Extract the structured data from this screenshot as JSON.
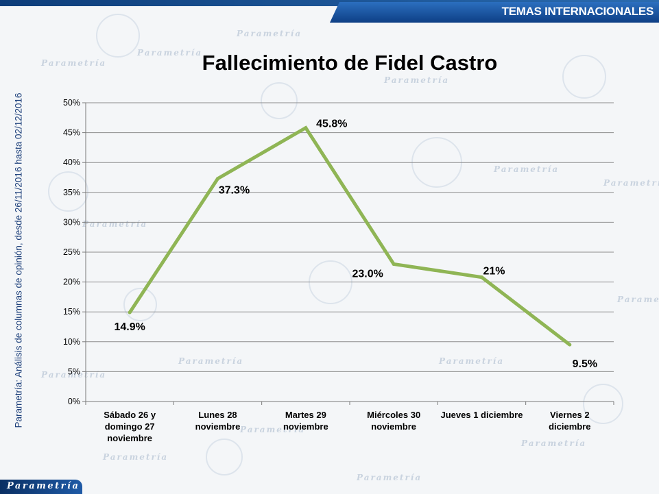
{
  "header": {
    "section": "TEMAS INTERNACIONALES"
  },
  "side_note": "Parametría: Análisis de columnas de opinión, desde 26/11/2016 hasta  02/12/2016",
  "logo": {
    "text": "Parametría"
  },
  "colors": {
    "line": "#8fb555",
    "grid": "#8c8c8c",
    "header_blue": "#1a4f96"
  },
  "chart_data": {
    "type": "line",
    "title": "Fallecimiento de Fidel Castro",
    "categories": [
      [
        "Sábado 26 y",
        "domingo 27",
        "noviembre"
      ],
      [
        "Lunes 28",
        "noviembre"
      ],
      [
        "Martes 29",
        "noviembre"
      ],
      [
        "Miércoles 30",
        "noviembre"
      ],
      [
        "Jueves 1 diciembre"
      ],
      [
        "Viernes 2",
        "diciembre"
      ]
    ],
    "values": [
      14.9,
      37.3,
      45.8,
      23.0,
      20.8,
      9.5
    ],
    "data_labels": [
      "14.9%",
      "37.3%",
      "45.8%",
      "23.0%",
      "21%",
      "9.5%"
    ],
    "yticks": [
      "0%",
      "5%",
      "10%",
      "15%",
      "20%",
      "25%",
      "30%",
      "35%",
      "40%",
      "45%",
      "50%"
    ],
    "ylim": [
      0,
      50
    ],
    "grid": true,
    "legend": "none"
  }
}
